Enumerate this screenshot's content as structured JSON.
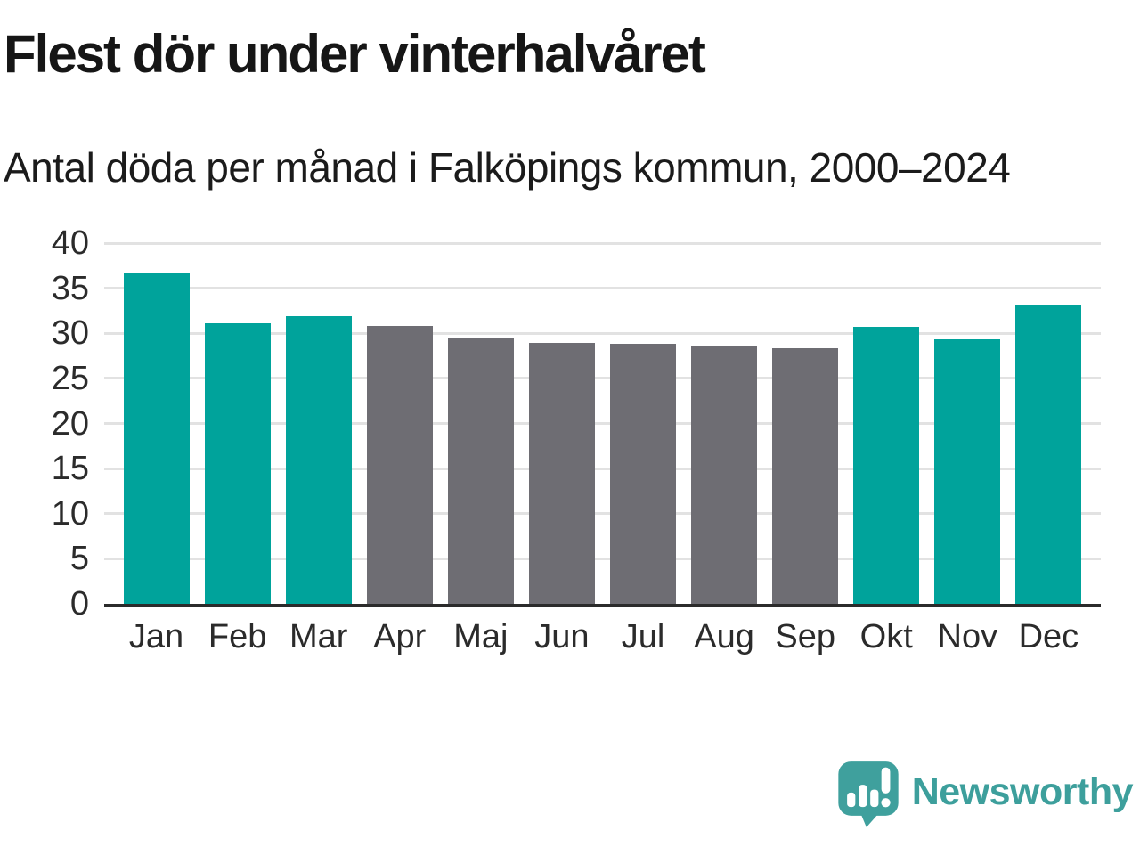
{
  "header": {
    "title": "Flest dör under vinterhalvåret",
    "subtitle": "Antal döda per månad i Falköpings kommun, 2000–2024"
  },
  "chart_data": {
    "type": "bar",
    "title": "Flest dör under vinterhalvåret",
    "subtitle": "Antal döda per månad i Falköpings kommun, 2000–2024",
    "categories": [
      "Jan",
      "Feb",
      "Mar",
      "Apr",
      "Maj",
      "Jun",
      "Jul",
      "Aug",
      "Sep",
      "Okt",
      "Nov",
      "Dec"
    ],
    "values": [
      36.7,
      31.1,
      31.9,
      30.8,
      29.4,
      28.9,
      28.8,
      28.6,
      28.3,
      30.7,
      29.3,
      33.2
    ],
    "bar_colors": [
      "#00a39b",
      "#00a39b",
      "#00a39b",
      "#6e6d73",
      "#6e6d73",
      "#6e6d73",
      "#6e6d73",
      "#6e6d73",
      "#6e6d73",
      "#00a39b",
      "#00a39b",
      "#00a39b"
    ],
    "winter_highlight_color": "#00a39b",
    "summer_base_color": "#6e6d73",
    "ylim": [
      0,
      40
    ],
    "yticks": [
      0,
      5,
      10,
      15,
      20,
      25,
      30,
      35,
      40
    ],
    "grid": true,
    "legend_position": "none",
    "xlabel": "",
    "ylabel": ""
  },
  "style": {
    "gridline_color": "#e2e2e2",
    "axis_line_color": "#2b2b2b",
    "axis_text_color": "#2b2b2b",
    "title_color": "#161616"
  },
  "branding": {
    "logo_text": "Newsworthy",
    "logo_color": "#3d9f9c",
    "logo_icon": "speech-bubble-bar-chart-exclamation"
  }
}
